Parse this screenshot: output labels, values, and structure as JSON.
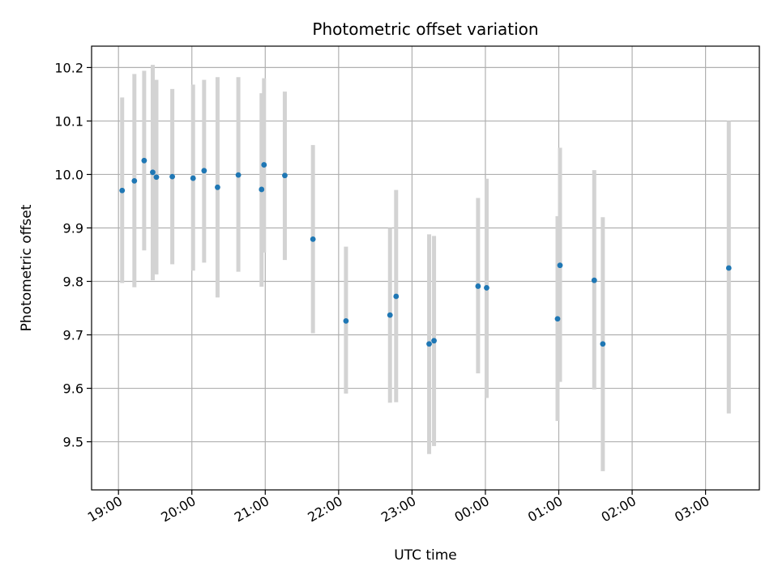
{
  "chart_data": {
    "type": "scatter",
    "title": "Photometric offset variation",
    "xlabel": "UTC time",
    "ylabel": "Photometric offset",
    "x_tick_labels": [
      "19:00",
      "20:00",
      "21:00",
      "22:00",
      "23:00",
      "00:00",
      "01:00",
      "02:00",
      "03:00"
    ],
    "y_tick_labels": [
      "9.5",
      "9.6",
      "9.7",
      "9.8",
      "9.9",
      "10.0",
      "10.1",
      "10.2"
    ],
    "xlim": [
      "18:38",
      "03:44"
    ],
    "ylim": [
      9.41,
      10.24
    ],
    "grid": true,
    "colors": {
      "points": "#1f77b4",
      "errorbars": "#d3d3d3",
      "grid": "#b0b0b0"
    },
    "series": [
      {
        "x": [
          "19:03",
          "19:13",
          "19:21",
          "19:28",
          "19:31",
          "19:44",
          "20:01",
          "20:10",
          "20:21",
          "20:38",
          "20:57",
          "20:59",
          "21:16",
          "21:39",
          "22:06",
          "22:42",
          "22:47",
          "23:14",
          "23:18",
          "23:54",
          "24:01",
          "24:59",
          "25:01",
          "25:29",
          "25:36",
          "27:19"
        ],
        "y": [
          9.97,
          9.988,
          10.026,
          10.004,
          9.995,
          9.996,
          9.993,
          10.007,
          9.976,
          9.999,
          9.972,
          10.018,
          9.998,
          9.879,
          9.726,
          9.737,
          9.772,
          9.683,
          9.689,
          9.791,
          9.788,
          9.73,
          9.83,
          9.802,
          9.683,
          9.825
        ],
        "y_lower": [
          9.797,
          9.789,
          9.858,
          9.802,
          9.813,
          9.832,
          9.82,
          9.835,
          9.77,
          9.818,
          9.79,
          9.854,
          9.84,
          9.703,
          9.59,
          9.573,
          9.574,
          9.477,
          9.492,
          9.628,
          9.582,
          9.539,
          9.612,
          9.598,
          9.445,
          9.553
        ],
        "y_upper": [
          10.144,
          10.188,
          10.194,
          10.205,
          10.177,
          10.16,
          10.168,
          10.177,
          10.182,
          10.182,
          10.152,
          10.18,
          10.155,
          10.055,
          9.865,
          9.9,
          9.971,
          9.888,
          9.885,
          9.956,
          9.992,
          9.922,
          10.05,
          10.008,
          9.92,
          10.1
        ]
      }
    ]
  }
}
